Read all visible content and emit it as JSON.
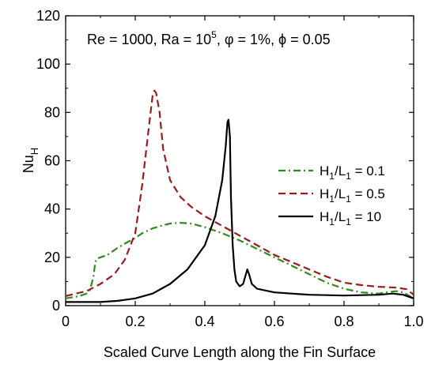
{
  "chart_data": {
    "type": "line",
    "xlabel": "Scaled Curve Length along the Fin Surface",
    "ylabel_base": "Nu",
    "ylabel_sub": "H",
    "xlim": [
      0,
      1.0
    ],
    "ylim": [
      0,
      120
    ],
    "xticks": [
      0,
      0.2,
      0.4,
      0.6,
      0.8,
      1.0
    ],
    "xtick_labels": [
      "0",
      "0.2",
      "0.4",
      "0.6",
      "0.8",
      "1.0"
    ],
    "yticks": [
      0,
      20,
      40,
      60,
      80,
      100,
      120
    ],
    "ytick_labels": [
      "0",
      "20",
      "40",
      "60",
      "80",
      "100",
      "120"
    ],
    "annotation": {
      "parts": [
        {
          "text": "Re = 1000, Ra = 10"
        },
        {
          "text": "5",
          "sup": true
        },
        {
          "text": ", φ = 1%, ϕ = 0.05"
        }
      ]
    },
    "legend_position": "center-right",
    "series": [
      {
        "label": {
          "a": "H",
          "b": "1",
          "c": "/L",
          "d": "1",
          "e": " = 0.1"
        },
        "color": "#2e8b1f",
        "dash": "dashdot",
        "points": [
          [
            0,
            3
          ],
          [
            0.02,
            3.5
          ],
          [
            0.04,
            4
          ],
          [
            0.06,
            5
          ],
          [
            0.07,
            6.5
          ],
          [
            0.08,
            12
          ],
          [
            0.085,
            18
          ],
          [
            0.09,
            19.5
          ],
          [
            0.1,
            20
          ],
          [
            0.12,
            21
          ],
          [
            0.15,
            24
          ],
          [
            0.18,
            26.5
          ],
          [
            0.2,
            28
          ],
          [
            0.22,
            30
          ],
          [
            0.25,
            32
          ],
          [
            0.28,
            33.3
          ],
          [
            0.3,
            34
          ],
          [
            0.33,
            34.3
          ],
          [
            0.36,
            34
          ],
          [
            0.4,
            32.5
          ],
          [
            0.45,
            30
          ],
          [
            0.5,
            27
          ],
          [
            0.55,
            23.5
          ],
          [
            0.6,
            20
          ],
          [
            0.65,
            16.5
          ],
          [
            0.7,
            13
          ],
          [
            0.75,
            9.5
          ],
          [
            0.8,
            7
          ],
          [
            0.85,
            5.5
          ],
          [
            0.9,
            5
          ],
          [
            0.92,
            5.5
          ],
          [
            0.95,
            6
          ],
          [
            0.97,
            5.5
          ],
          [
            1.0,
            3
          ]
        ]
      },
      {
        "label": {
          "a": "H",
          "b": "1",
          "c": "/L",
          "d": "1",
          "e": " = 0.5"
        },
        "color": "#9a1c1c",
        "dash": "dash",
        "points": [
          [
            0,
            4
          ],
          [
            0.03,
            5
          ],
          [
            0.06,
            6
          ],
          [
            0.1,
            9
          ],
          [
            0.14,
            13
          ],
          [
            0.17,
            19
          ],
          [
            0.2,
            30
          ],
          [
            0.22,
            50
          ],
          [
            0.24,
            75
          ],
          [
            0.25,
            87
          ],
          [
            0.255,
            89
          ],
          [
            0.26,
            88
          ],
          [
            0.27,
            80
          ],
          [
            0.28,
            65
          ],
          [
            0.3,
            52
          ],
          [
            0.33,
            45
          ],
          [
            0.36,
            41
          ],
          [
            0.4,
            37
          ],
          [
            0.45,
            33
          ],
          [
            0.5,
            29
          ],
          [
            0.55,
            25
          ],
          [
            0.6,
            21
          ],
          [
            0.65,
            18
          ],
          [
            0.7,
            15
          ],
          [
            0.75,
            12
          ],
          [
            0.8,
            9.5
          ],
          [
            0.85,
            8.5
          ],
          [
            0.9,
            7.8
          ],
          [
            0.95,
            7.5
          ],
          [
            0.98,
            6.8
          ],
          [
            1.0,
            4.5
          ]
        ]
      },
      {
        "label": {
          "a": "H",
          "b": "1",
          "c": "/L",
          "d": "1",
          "e": " = 10"
        },
        "color": "#000000",
        "dash": "solid",
        "points": [
          [
            0,
            1.5
          ],
          [
            0.05,
            1.5
          ],
          [
            0.1,
            1.5
          ],
          [
            0.15,
            2
          ],
          [
            0.2,
            3
          ],
          [
            0.25,
            5
          ],
          [
            0.3,
            9
          ],
          [
            0.35,
            15
          ],
          [
            0.4,
            25
          ],
          [
            0.43,
            37
          ],
          [
            0.45,
            52
          ],
          [
            0.46,
            66
          ],
          [
            0.465,
            76
          ],
          [
            0.468,
            77
          ],
          [
            0.472,
            70
          ],
          [
            0.475,
            45
          ],
          [
            0.48,
            25
          ],
          [
            0.485,
            15
          ],
          [
            0.49,
            10
          ],
          [
            0.5,
            8
          ],
          [
            0.51,
            9
          ],
          [
            0.518,
            13
          ],
          [
            0.522,
            15
          ],
          [
            0.527,
            13
          ],
          [
            0.535,
            9
          ],
          [
            0.55,
            7
          ],
          [
            0.6,
            5.5
          ],
          [
            0.7,
            4.5
          ],
          [
            0.8,
            4.2
          ],
          [
            0.9,
            4.5
          ],
          [
            0.94,
            5
          ],
          [
            0.97,
            4.5
          ],
          [
            1.0,
            3
          ]
        ]
      }
    ]
  }
}
